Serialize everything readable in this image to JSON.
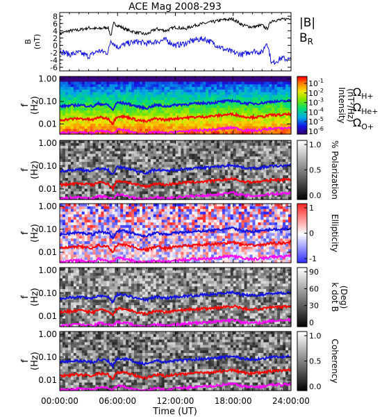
{
  "figure": {
    "title": "ACE Mag 2008-293",
    "time_axis_label": "Time (UT)",
    "time_ticks": [
      "00:00:00",
      "06:00:00",
      "12:00:00",
      "18:00:00",
      "24:00:00"
    ]
  },
  "chart_data": [
    {
      "type": "line",
      "name": "field",
      "ylabel_line1": "B",
      "ylabel_line2": "(nT)",
      "ylim": [
        -7,
        9
      ],
      "yticks": [
        "8",
        "6",
        "4",
        "2",
        "0",
        "-2",
        "-4",
        "-6"
      ],
      "ytick_values": [
        8,
        6,
        4,
        2,
        0,
        -2,
        -4,
        -6
      ],
      "xlim_hours": [
        0,
        24
      ],
      "series": [
        {
          "name": "|B|",
          "color": "#000000",
          "x_hours": [
            0,
            1,
            2,
            3,
            4,
            5,
            5.3,
            5.6,
            6,
            7,
            8,
            9,
            10,
            11,
            12,
            13,
            14,
            15,
            16,
            17,
            18,
            19,
            20,
            21,
            21.5,
            22,
            23,
            24
          ],
          "values": [
            3.2,
            4.0,
            4.2,
            4.8,
            4.5,
            5.0,
            2.5,
            6.0,
            5.5,
            4.2,
            3.5,
            3.0,
            4.5,
            4.0,
            5.0,
            4.5,
            5.5,
            6.0,
            6.5,
            7.0,
            7.2,
            5.5,
            5.0,
            5.5,
            4.5,
            6.8,
            7.0,
            7.5
          ]
        },
        {
          "name": "B_R",
          "color": "#1010e0",
          "x_hours": [
            0,
            1,
            2,
            3,
            4,
            5,
            5.3,
            5.6,
            6,
            7,
            8,
            9,
            10,
            11,
            12,
            13,
            14,
            15,
            16,
            17,
            18,
            19,
            20,
            21,
            21.5,
            22,
            23,
            24
          ],
          "values": [
            -1.5,
            -2.5,
            -2.0,
            -3.0,
            -1.5,
            -2.0,
            1.5,
            0.5,
            -0.5,
            0.5,
            1.0,
            0.5,
            1.0,
            1.5,
            0.0,
            0.5,
            1.5,
            1.8,
            0.5,
            -1.0,
            -2.0,
            -2.5,
            -1.5,
            -2.0,
            1.0,
            -5.0,
            -3.5,
            -4.0
          ]
        }
      ],
      "legend": [
        {
          "label": "|B|",
          "color": "#000000"
        },
        {
          "label": "B",
          "sub": "R",
          "color": "#1010e0"
        }
      ]
    },
    {
      "type": "heatmap",
      "name": "intensity",
      "ylabel_line1": "f",
      "ylabel_line2": "(Hz)",
      "yscale": "log",
      "ylim": [
        0.0035,
        1.3
      ],
      "yticks": [
        "1.00",
        "0.10",
        "0.01"
      ],
      "ytick_values": [
        1,
        0.1,
        0.01
      ],
      "colorbar": {
        "label_line1": "Intensity",
        "label_line2": "(nT²/Hz)",
        "scale": "log",
        "range": [
          1e-06,
          1
        ],
        "tick_base": "10",
        "tick_exponents": [
          "-1",
          "-2",
          "-3",
          "-4",
          "-5",
          "-6"
        ],
        "colormap": "rainbow"
      },
      "legend": [
        {
          "label": "Ω",
          "sub": "H+",
          "color": "#1010e0"
        },
        {
          "label": "Ω",
          "sub": "He+",
          "color": "#ff0000"
        },
        {
          "label": "Ω",
          "sub": "O+",
          "color": "#ff00ff"
        }
      ]
    },
    {
      "type": "heatmap",
      "name": "polarization",
      "ylabel_line1": "f",
      "ylabel_line2": "(Hz)",
      "yscale": "log",
      "ylim": [
        0.0035,
        1.3
      ],
      "yticks": [
        "1.00",
        "0.10",
        "0.01"
      ],
      "ytick_values": [
        1,
        0.1,
        0.01
      ],
      "colorbar": {
        "label_line1": "% Polarization",
        "label_line2": "",
        "range": [
          0,
          1
        ],
        "ticks": [
          "1.0",
          "0.5",
          "0.0"
        ],
        "colormap": "gray"
      }
    },
    {
      "type": "heatmap",
      "name": "ellipticity",
      "ylabel_line1": "f",
      "ylabel_line2": "(Hz)",
      "yscale": "log",
      "ylim": [
        0.0035,
        1.3
      ],
      "yticks": [
        "1.00",
        "0.10",
        "0.01"
      ],
      "ytick_values": [
        1,
        0.1,
        0.01
      ],
      "colorbar": {
        "label_line1": "Ellipticity",
        "label_line2": "",
        "range": [
          -1,
          1
        ],
        "ticks": [
          "1",
          "0",
          "-1"
        ],
        "colormap": "blue-white-red"
      }
    },
    {
      "type": "heatmap",
      "name": "kdotb",
      "ylabel_line1": "f",
      "ylabel_line2": "(Hz)",
      "yscale": "log",
      "ylim": [
        0.0035,
        1.3
      ],
      "yticks": [
        "1.00",
        "0.10",
        "0.01"
      ],
      "ytick_values": [
        1,
        0.1,
        0.01
      ],
      "colorbar": {
        "label_line1": "k dot B",
        "label_line2": "(Deg)",
        "range": [
          0,
          90
        ],
        "ticks": [
          "90",
          "60",
          "30",
          "0"
        ],
        "colormap": "gray"
      }
    },
    {
      "type": "heatmap",
      "name": "coherency",
      "ylabel_line1": "f",
      "ylabel_line2": "(Hz)",
      "yscale": "log",
      "ylim": [
        0.0035,
        1.3
      ],
      "yticks": [
        "1.00",
        "0.10",
        "0.01"
      ],
      "ytick_values": [
        1,
        0.1,
        0.01
      ],
      "colorbar": {
        "label_line1": "Coherency",
        "label_line2": "",
        "range": [
          0,
          1
        ],
        "ticks": [
          "1.0",
          "0.5",
          "0.0"
        ],
        "colormap": "gray"
      }
    }
  ],
  "gyrofrequency_lines": [
    {
      "name": "Ω H+",
      "color": "#1010e0",
      "x_hours": [
        0,
        2,
        3.5,
        4,
        5,
        5.5,
        6,
        7,
        8,
        9,
        10,
        11,
        12,
        13,
        14,
        15,
        16,
        17,
        18,
        19,
        20,
        21,
        22,
        23,
        24
      ],
      "values": [
        0.06,
        0.07,
        0.06,
        0.08,
        0.07,
        0.04,
        0.09,
        0.08,
        0.06,
        0.05,
        0.07,
        0.06,
        0.07,
        0.075,
        0.08,
        0.085,
        0.09,
        0.1,
        0.11,
        0.085,
        0.08,
        0.085,
        0.1,
        0.1,
        0.11
      ]
    },
    {
      "name": "Ω He+",
      "color": "#ff0000",
      "x_hours": [
        0,
        2,
        3.5,
        4,
        5,
        5.5,
        6,
        7,
        8,
        9,
        10,
        11,
        12,
        13,
        14,
        15,
        16,
        17,
        18,
        19,
        20,
        21,
        22,
        23,
        24
      ],
      "values": [
        0.015,
        0.0175,
        0.015,
        0.02,
        0.0175,
        0.01,
        0.0225,
        0.02,
        0.015,
        0.0125,
        0.0175,
        0.015,
        0.0175,
        0.019,
        0.02,
        0.021,
        0.0225,
        0.025,
        0.0275,
        0.021,
        0.02,
        0.021,
        0.025,
        0.025,
        0.0275
      ]
    },
    {
      "name": "Ω O+",
      "color": "#ff00ff",
      "x_hours": [
        0,
        2,
        3.5,
        4,
        5,
        5.5,
        6,
        7,
        8,
        9,
        10,
        11,
        12,
        13,
        14,
        15,
        16,
        17,
        18,
        19,
        20,
        21,
        22,
        23,
        24
      ],
      "values": [
        0.00375,
        0.0044,
        0.00375,
        0.005,
        0.0044,
        0.0036,
        0.0056,
        0.005,
        0.00375,
        0.0036,
        0.0044,
        0.00375,
        0.0044,
        0.0047,
        0.005,
        0.0053,
        0.0056,
        0.0063,
        0.0069,
        0.0053,
        0.005,
        0.0053,
        0.0063,
        0.0063,
        0.0069
      ]
    }
  ]
}
